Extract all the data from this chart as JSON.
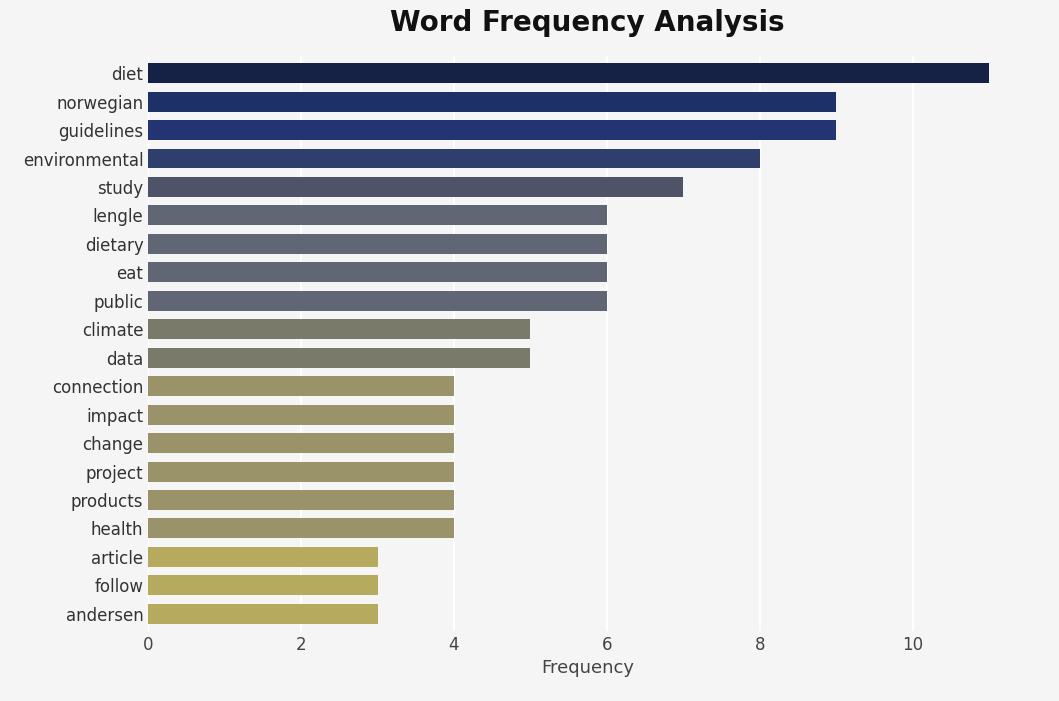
{
  "title": "Word Frequency Analysis",
  "xlabel": "Frequency",
  "categories": [
    "diet",
    "norwegian",
    "guidelines",
    "environmental",
    "study",
    "lengle",
    "dietary",
    "eat",
    "public",
    "climate",
    "data",
    "connection",
    "impact",
    "change",
    "project",
    "products",
    "health",
    "article",
    "follow",
    "andersen"
  ],
  "values": [
    11,
    9,
    9,
    8,
    7,
    6,
    6,
    6,
    6,
    5,
    5,
    4,
    4,
    4,
    4,
    4,
    4,
    3,
    3,
    3
  ],
  "colors": [
    "#152245",
    "#1e3068",
    "#243472",
    "#2e3f6e",
    "#4e5368",
    "#606673",
    "#606673",
    "#606673",
    "#606673",
    "#797a6a",
    "#797a6a",
    "#9a936a",
    "#9a936a",
    "#9a936a",
    "#9a936a",
    "#9a936a",
    "#9a936a",
    "#b5aa5e",
    "#b5aa5e",
    "#b5aa5e"
  ],
  "background_color": "#f5f5f5",
  "plot_bg_color": "#f5f5f5",
  "title_fontsize": 20,
  "tick_fontsize": 12,
  "label_fontsize": 13,
  "xticks": [
    0,
    2,
    4,
    6,
    8,
    10
  ],
  "xlim": [
    0,
    11.5
  ]
}
